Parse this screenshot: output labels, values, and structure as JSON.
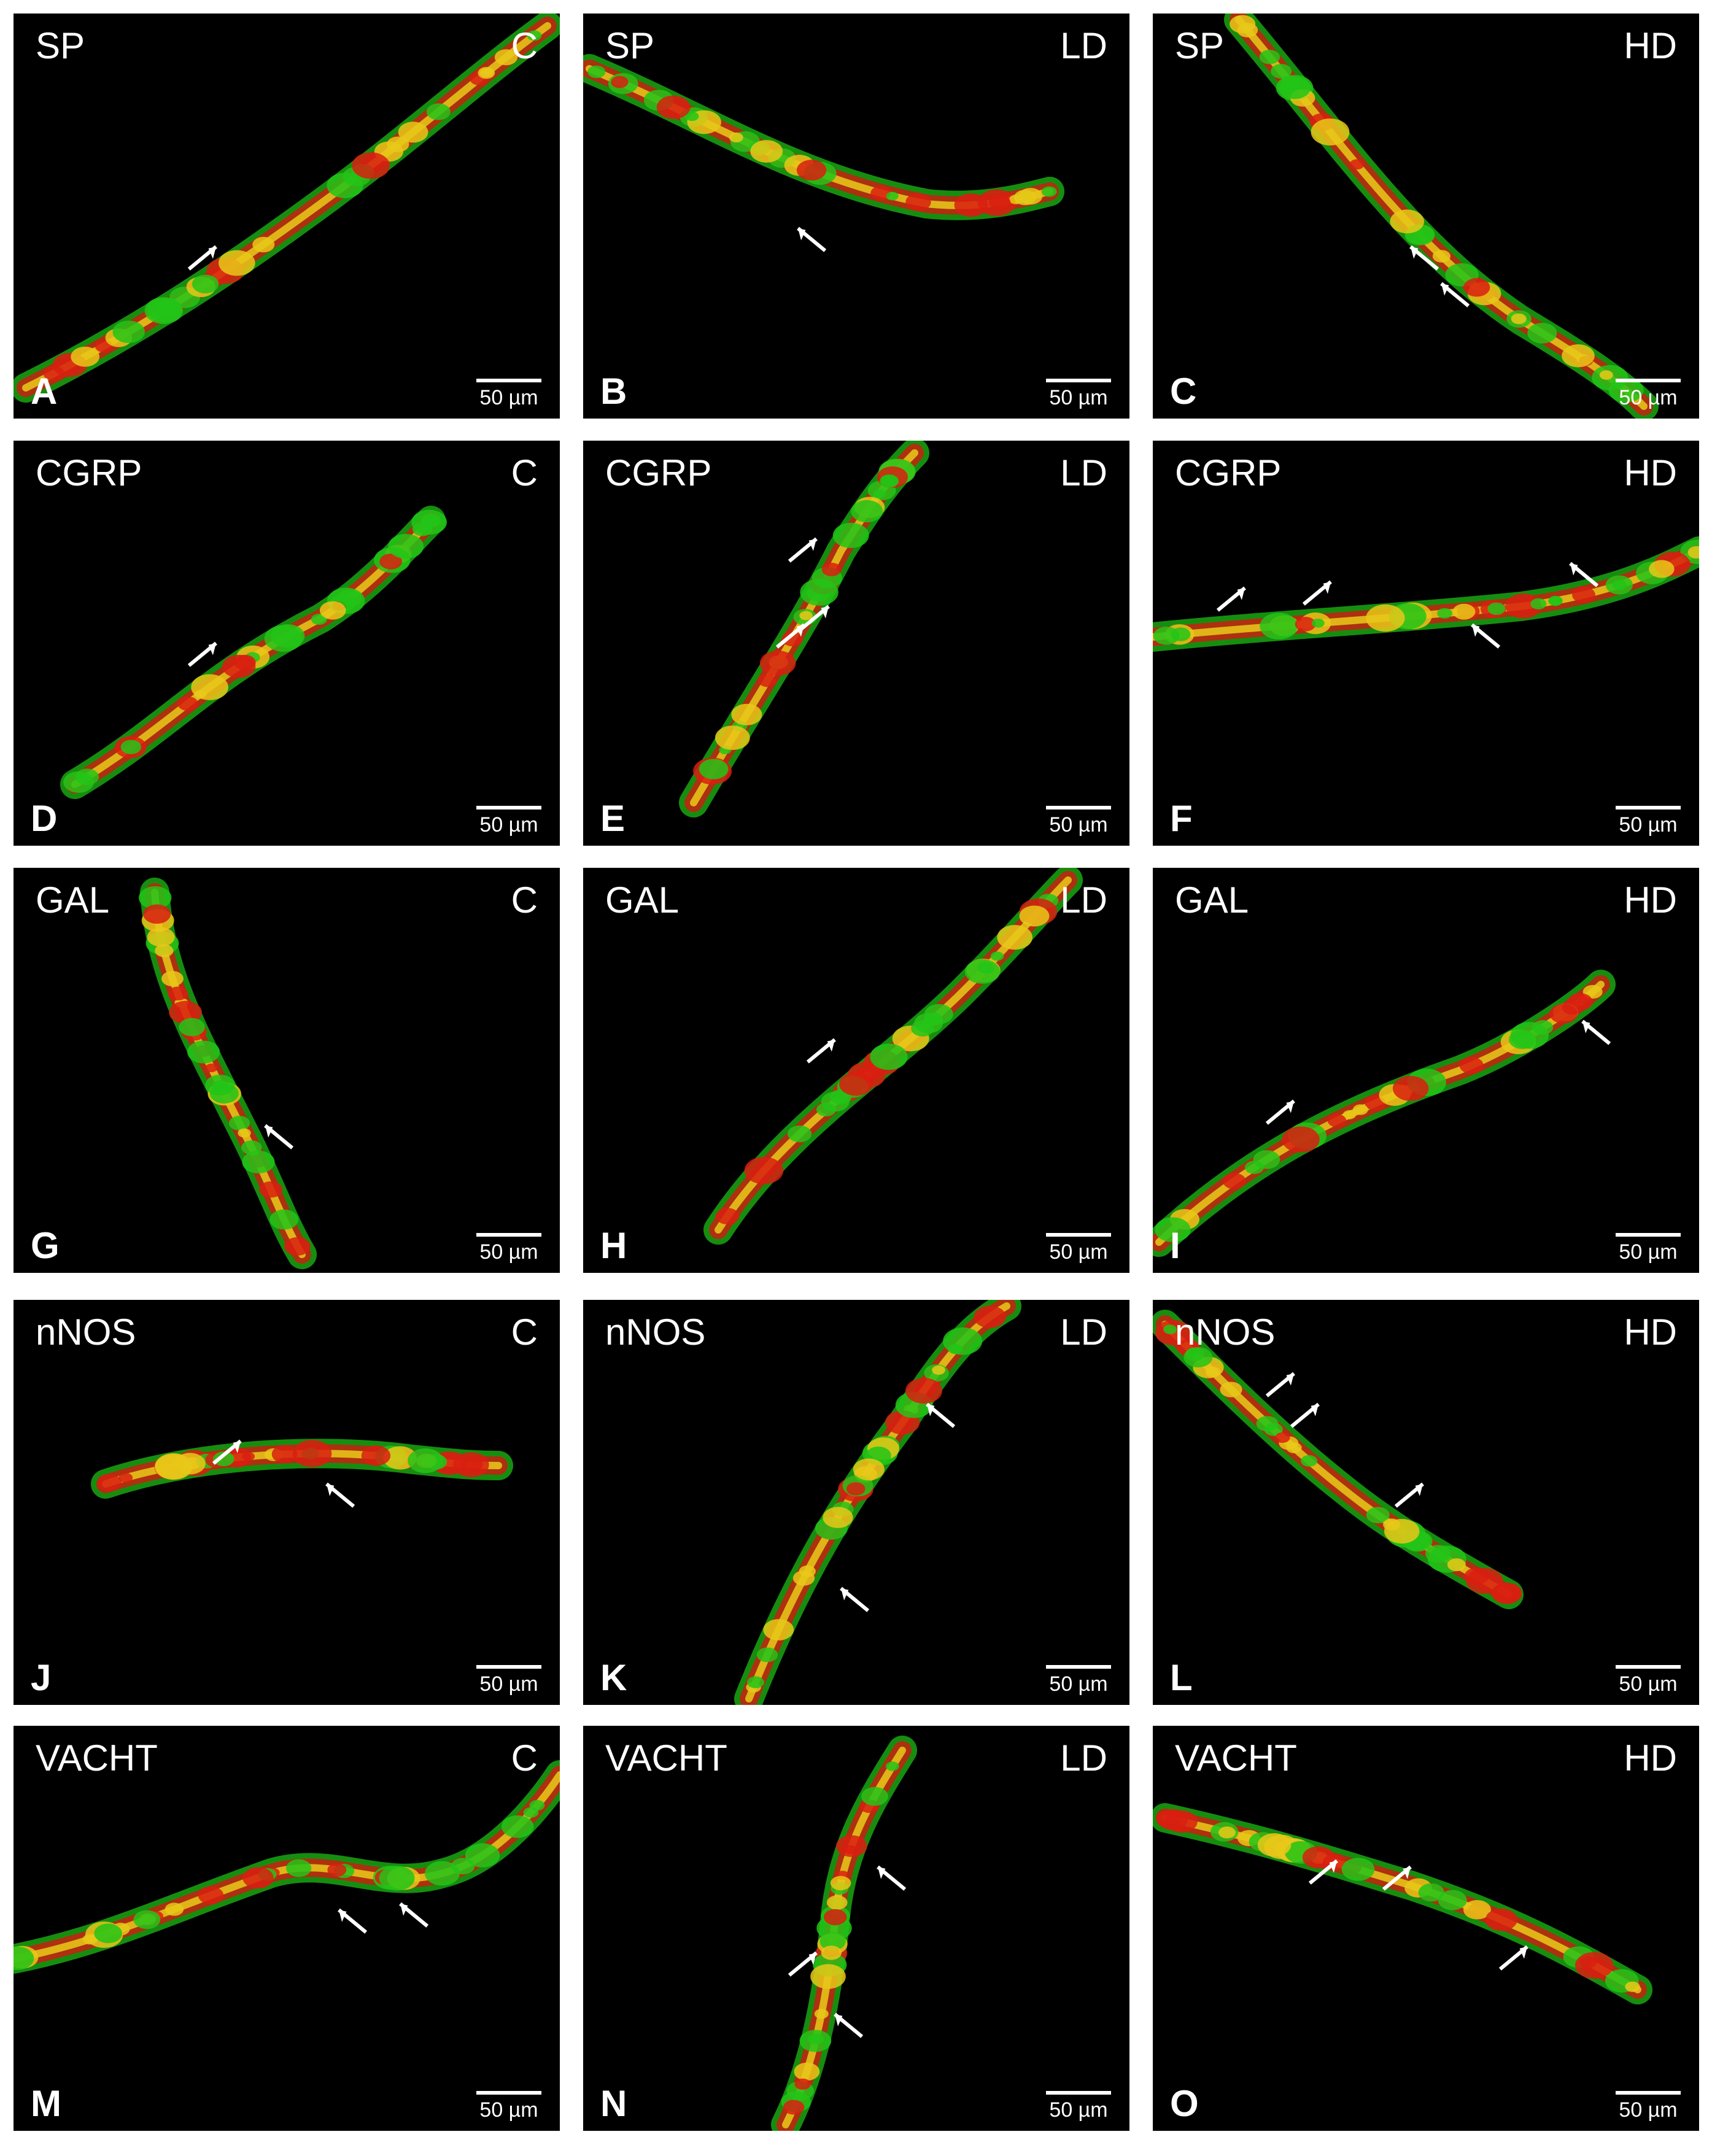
{
  "figure": {
    "panels": [
      {
        "letter": "A",
        "marker": "SP",
        "group": "C",
        "scale": "50 µm"
      },
      {
        "letter": "B",
        "marker": "SP",
        "group": "LD",
        "scale": "50 µm"
      },
      {
        "letter": "C",
        "marker": "SP",
        "group": "HD",
        "scale": "50 µm"
      },
      {
        "letter": "D",
        "marker": "CGRP",
        "group": "C",
        "scale": "50 µm"
      },
      {
        "letter": "E",
        "marker": "CGRP",
        "group": "LD",
        "scale": "50 µm"
      },
      {
        "letter": "F",
        "marker": "CGRP",
        "group": "HD",
        "scale": "50 µm"
      },
      {
        "letter": "G",
        "marker": "GAL",
        "group": "C",
        "scale": "50 µm"
      },
      {
        "letter": "H",
        "marker": "GAL",
        "group": "LD",
        "scale": "50 µm"
      },
      {
        "letter": "I",
        "marker": "GAL",
        "group": "HD",
        "scale": "50 µm"
      },
      {
        "letter": "J",
        "marker": "nNOS",
        "group": "C",
        "scale": "50 µm"
      },
      {
        "letter": "K",
        "marker": "nNOS",
        "group": "LD",
        "scale": "50 µm"
      },
      {
        "letter": "L",
        "marker": "nNOS",
        "group": "HD",
        "scale": "50 µm"
      },
      {
        "letter": "M",
        "marker": "VACHT",
        "group": "C",
        "scale": "50 µm"
      },
      {
        "letter": "N",
        "marker": "VACHT",
        "group": "LD",
        "scale": "50 µm"
      },
      {
        "letter": "O",
        "marker": "VACHT",
        "group": "HD",
        "scale": "50 µm"
      }
    ]
  }
}
